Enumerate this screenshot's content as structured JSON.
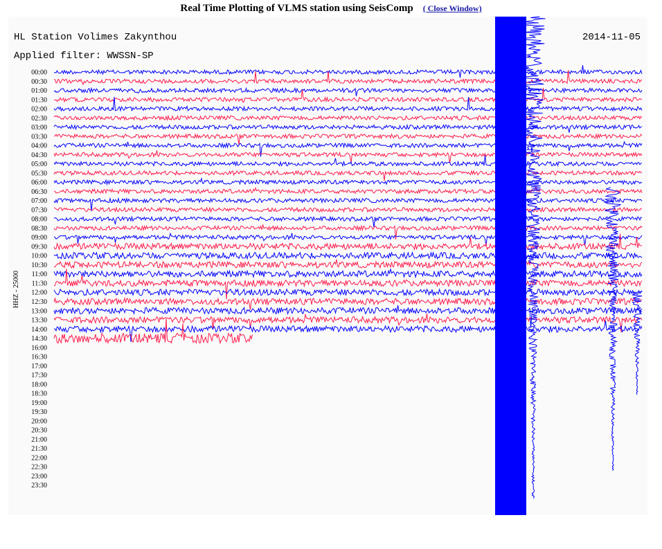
{
  "header": {
    "title": "Real Time Plotting of VLMS station using SeisComp",
    "link": "( Close Window)"
  },
  "plot": {
    "station": "HL Station Volimes Zakynthou",
    "date": "2014-11-05",
    "filter": "Applied filter: WWSSN-SP",
    "axis_label": "HHZ - 25000",
    "times": [
      "00:00",
      "00:30",
      "01:00",
      "01:30",
      "02:00",
      "02:30",
      "03:00",
      "03:30",
      "04:00",
      "04:30",
      "05:00",
      "05:30",
      "06:00",
      "06:30",
      "07:00",
      "07:30",
      "08:00",
      "08:30",
      "09:00",
      "09:30",
      "10:00",
      "10:30",
      "11:00",
      "11:30",
      "12:00",
      "12:30",
      "13:00",
      "13:30",
      "14:00",
      "14:30",
      "16:00",
      "16:30",
      "17:00",
      "17:30",
      "18:00",
      "18:30",
      "19:00",
      "19:30",
      "20:00",
      "20:30",
      "21:00",
      "21:30",
      "22:00",
      "22:30",
      "23:00",
      "23:30"
    ]
  }
}
